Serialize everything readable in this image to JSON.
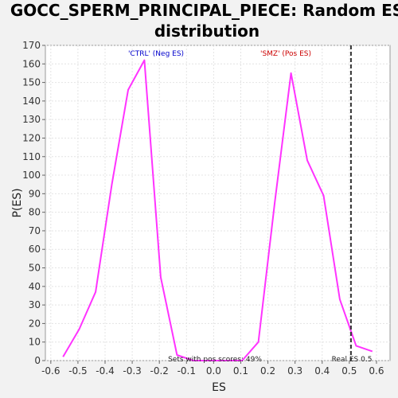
{
  "chart_data": {
    "type": "line",
    "title_line1": "GOCC_SPERM_PRINCIPAL_PIECE: Random ES",
    "title_line2": "distribution",
    "xlabel": "ES",
    "ylabel": "P(ES)",
    "xlim": [
      -0.62,
      0.65
    ],
    "ylim": [
      0,
      170
    ],
    "xticks": [
      -0.6,
      -0.5,
      -0.4,
      -0.3,
      -0.2,
      -0.1,
      0.0,
      0.1,
      0.2,
      0.3,
      0.4,
      0.5,
      0.6
    ],
    "xtick_labels": [
      "-0.6",
      "-0.5",
      "-0.4",
      "-0.3",
      "-0.2",
      "-0.1",
      "0.0",
      "0.1",
      "0.2",
      "0.3",
      "0.4",
      "0.5",
      "0.6"
    ],
    "yticks": [
      0,
      10,
      20,
      30,
      40,
      50,
      60,
      70,
      80,
      90,
      100,
      110,
      120,
      130,
      140,
      150,
      160,
      170
    ],
    "ytick_labels": [
      "0",
      "10",
      "20",
      "30",
      "40",
      "50",
      "60",
      "70",
      "80",
      "90",
      "100",
      "110",
      "120",
      "130",
      "140",
      "150",
      "160",
      "170"
    ],
    "grid": true,
    "series": [
      {
        "color": "#ff33ff",
        "x": [
          -0.555,
          -0.495,
          -0.435,
          -0.375,
          -0.315,
          -0.255,
          -0.195,
          -0.135,
          -0.075,
          -0.015,
          0.045,
          0.105,
          0.165,
          0.225,
          0.285,
          0.345,
          0.405,
          0.465,
          0.525,
          0.585
        ],
        "y": [
          2,
          17,
          37,
          95,
          146,
          162,
          45,
          3,
          0,
          0,
          0,
          0,
          10,
          85,
          155,
          108,
          89,
          33,
          8,
          5
        ]
      }
    ],
    "annotations": {
      "neg_label": "'CTRL' (Neg ES)",
      "neg_color": "#0000cc",
      "pos_label": "'SMZ' (Pos ES)",
      "pos_color": "#cc0000",
      "pos_scores_text": "Sets with pos scores: 49%",
      "real_es_text": "Real ES 0.5",
      "real_es_value": 0.506
    }
  }
}
